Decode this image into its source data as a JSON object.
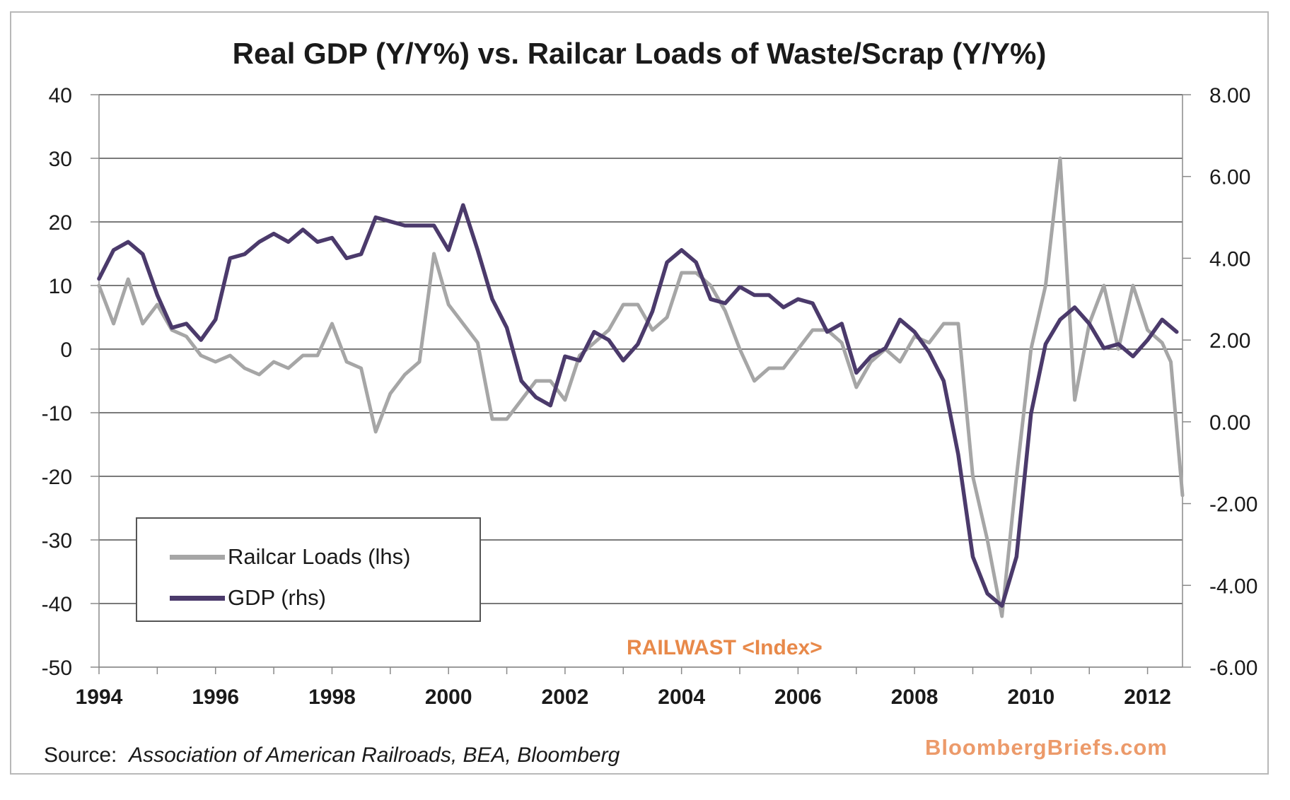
{
  "chart_data": {
    "type": "line",
    "title": "Real GDP (Y/Y%) vs. Railcar Loads of Waste/Scrap (Y/Y%)",
    "xlabel": "",
    "ylabel": "",
    "xlim": [
      1994.0,
      2012.6
    ],
    "x_ticks": [
      "1994",
      "1996",
      "1998",
      "2000",
      "2002",
      "2004",
      "2006",
      "2008",
      "2010",
      "2012"
    ],
    "ylim_left": [
      -50,
      40
    ],
    "ylim_right": [
      -6,
      8
    ],
    "y_ticks_left": [
      "40",
      "30",
      "20",
      "10",
      "0",
      "-10",
      "-20",
      "-30",
      "-40",
      "-50"
    ],
    "y_ticks_right": [
      "8.00",
      "6.00",
      "4.00",
      "2.00",
      "0.00",
      "-2.00",
      "-4.00",
      "-6.00"
    ],
    "grid": true,
    "legend_position": "bottom-left",
    "series": [
      {
        "name": "Railcar Loads (lhs)",
        "axis": "left",
        "color": "#a6a6a6",
        "points": [
          [
            1994.0,
            10
          ],
          [
            1994.25,
            4
          ],
          [
            1994.5,
            11
          ],
          [
            1994.75,
            4
          ],
          [
            1995.0,
            7
          ],
          [
            1995.25,
            3
          ],
          [
            1995.5,
            2
          ],
          [
            1995.75,
            -1
          ],
          [
            1996.0,
            -2
          ],
          [
            1996.25,
            -1
          ],
          [
            1996.5,
            -3
          ],
          [
            1996.75,
            -4
          ],
          [
            1997.0,
            -2
          ],
          [
            1997.25,
            -3
          ],
          [
            1997.5,
            -1
          ],
          [
            1997.75,
            -1
          ],
          [
            1998.0,
            4
          ],
          [
            1998.25,
            -2
          ],
          [
            1998.5,
            -3
          ],
          [
            1998.75,
            -13
          ],
          [
            1999.0,
            -7
          ],
          [
            1999.25,
            -4
          ],
          [
            1999.5,
            -2
          ],
          [
            1999.75,
            15
          ],
          [
            2000.0,
            7
          ],
          [
            2000.25,
            4
          ],
          [
            2000.5,
            1
          ],
          [
            2000.75,
            -11
          ],
          [
            2001.0,
            -11
          ],
          [
            2001.25,
            -8
          ],
          [
            2001.5,
            -5
          ],
          [
            2001.75,
            -5
          ],
          [
            2002.0,
            -8
          ],
          [
            2002.25,
            -1
          ],
          [
            2002.5,
            1
          ],
          [
            2002.75,
            3
          ],
          [
            2003.0,
            7
          ],
          [
            2003.25,
            7
          ],
          [
            2003.5,
            3
          ],
          [
            2003.75,
            5
          ],
          [
            2004.0,
            12
          ],
          [
            2004.25,
            12
          ],
          [
            2004.5,
            10
          ],
          [
            2004.75,
            6
          ],
          [
            2005.0,
            0
          ],
          [
            2005.25,
            -5
          ],
          [
            2005.5,
            -3
          ],
          [
            2005.75,
            -3
          ],
          [
            2006.0,
            0
          ],
          [
            2006.25,
            3
          ],
          [
            2006.5,
            3
          ],
          [
            2006.75,
            1
          ],
          [
            2007.0,
            -6
          ],
          [
            2007.25,
            -2
          ],
          [
            2007.5,
            0
          ],
          [
            2007.75,
            -2
          ],
          [
            2008.0,
            2
          ],
          [
            2008.25,
            1
          ],
          [
            2008.5,
            4
          ],
          [
            2008.75,
            4
          ],
          [
            2009.0,
            -20
          ],
          [
            2009.25,
            -30
          ],
          [
            2009.5,
            -42
          ],
          [
            2009.75,
            -20
          ],
          [
            2010.0,
            0
          ],
          [
            2010.25,
            10
          ],
          [
            2010.5,
            30
          ],
          [
            2010.75,
            -8
          ],
          [
            2011.0,
            4
          ],
          [
            2011.25,
            10
          ],
          [
            2011.5,
            0
          ],
          [
            2011.75,
            10
          ],
          [
            2012.0,
            3
          ],
          [
            2012.25,
            1
          ],
          [
            2012.4,
            -2
          ],
          [
            2012.6,
            -23
          ]
        ]
      },
      {
        "name": "GDP (rhs)",
        "axis": "right",
        "color": "#4b3a6b",
        "points": [
          [
            1994.0,
            3.5
          ],
          [
            1994.25,
            4.2
          ],
          [
            1994.5,
            4.4
          ],
          [
            1994.75,
            4.1
          ],
          [
            1995.0,
            3.1
          ],
          [
            1995.25,
            2.3
          ],
          [
            1995.5,
            2.4
          ],
          [
            1995.75,
            2.0
          ],
          [
            1996.0,
            2.5
          ],
          [
            1996.25,
            4.0
          ],
          [
            1996.5,
            4.1
          ],
          [
            1996.75,
            4.4
          ],
          [
            1997.0,
            4.6
          ],
          [
            1997.25,
            4.4
          ],
          [
            1997.5,
            4.7
          ],
          [
            1997.75,
            4.4
          ],
          [
            1998.0,
            4.5
          ],
          [
            1998.25,
            4.0
          ],
          [
            1998.5,
            4.1
          ],
          [
            1998.75,
            5.0
          ],
          [
            1999.0,
            4.9
          ],
          [
            1999.25,
            4.8
          ],
          [
            1999.5,
            4.8
          ],
          [
            1999.75,
            4.8
          ],
          [
            2000.0,
            4.2
          ],
          [
            2000.25,
            5.3
          ],
          [
            2000.5,
            4.2
          ],
          [
            2000.75,
            3.0
          ],
          [
            2001.0,
            2.3
          ],
          [
            2001.25,
            1.0
          ],
          [
            2001.5,
            0.6
          ],
          [
            2001.75,
            0.4
          ],
          [
            2002.0,
            1.6
          ],
          [
            2002.25,
            1.5
          ],
          [
            2002.5,
            2.2
          ],
          [
            2002.75,
            2.0
          ],
          [
            2003.0,
            1.5
          ],
          [
            2003.25,
            1.9
          ],
          [
            2003.5,
            2.7
          ],
          [
            2003.75,
            3.9
          ],
          [
            2004.0,
            4.2
          ],
          [
            2004.25,
            3.9
          ],
          [
            2004.5,
            3.0
          ],
          [
            2004.75,
            2.9
          ],
          [
            2005.0,
            3.3
          ],
          [
            2005.25,
            3.1
          ],
          [
            2005.5,
            3.1
          ],
          [
            2005.75,
            2.8
          ],
          [
            2006.0,
            3.0
          ],
          [
            2006.25,
            2.9
          ],
          [
            2006.5,
            2.2
          ],
          [
            2006.75,
            2.4
          ],
          [
            2007.0,
            1.2
          ],
          [
            2007.25,
            1.6
          ],
          [
            2007.5,
            1.8
          ],
          [
            2007.75,
            2.5
          ],
          [
            2008.0,
            2.2
          ],
          [
            2008.25,
            1.7
          ],
          [
            2008.5,
            1.0
          ],
          [
            2008.75,
            -0.8
          ],
          [
            2009.0,
            -3.3
          ],
          [
            2009.25,
            -4.2
          ],
          [
            2009.5,
            -4.5
          ],
          [
            2009.75,
            -3.3
          ],
          [
            2010.0,
            0.2
          ],
          [
            2010.25,
            1.9
          ],
          [
            2010.5,
            2.5
          ],
          [
            2010.75,
            2.8
          ],
          [
            2011.0,
            2.4
          ],
          [
            2011.25,
            1.8
          ],
          [
            2011.5,
            1.9
          ],
          [
            2011.75,
            1.6
          ],
          [
            2012.0,
            2.0
          ],
          [
            2012.25,
            2.5
          ],
          [
            2012.5,
            2.2
          ]
        ]
      }
    ],
    "annotation": "RAILWAST <Index>"
  },
  "footer": {
    "source_label": "Source:",
    "source_detail": "Association of American Railroads, BEA, Bloomberg",
    "brand": "BloombergBriefs.com"
  }
}
